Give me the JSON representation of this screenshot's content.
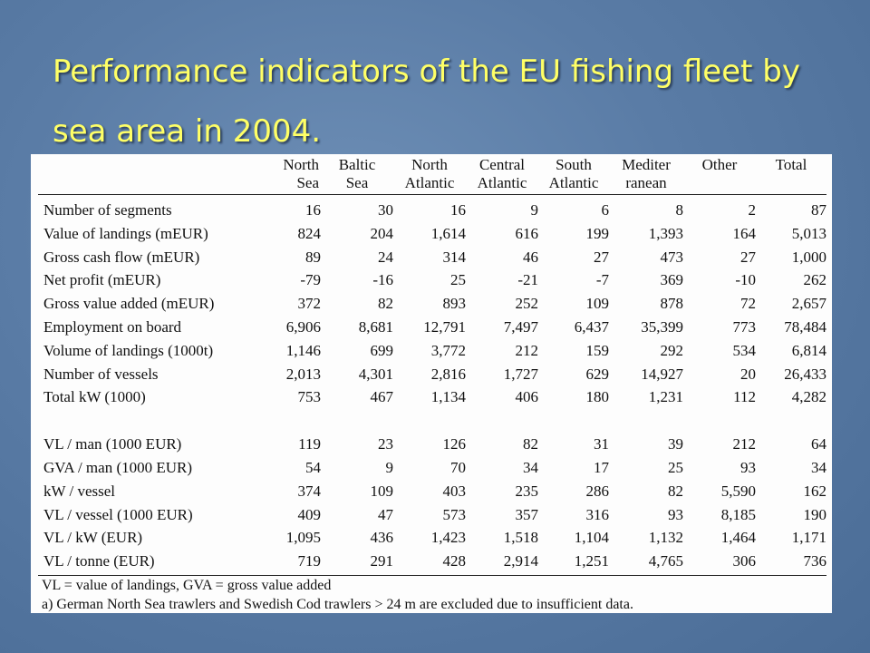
{
  "slide": {
    "title_line1": "Performance indicators of the EU fishing fleet by",
    "title_line2": "sea area in  2004."
  },
  "table": {
    "columns": [
      [
        "North",
        "Sea"
      ],
      [
        "Baltic",
        "Sea"
      ],
      [
        "North",
        "Atlantic"
      ],
      [
        "Central",
        "Atlantic"
      ],
      [
        "South",
        "Atlantic"
      ],
      [
        "Mediter",
        "ranean"
      ],
      [
        "Other",
        ""
      ],
      [
        "Total",
        ""
      ]
    ],
    "rows_group1": [
      {
        "label": "Number of segments",
        "values": [
          "16",
          "30",
          "16",
          "9",
          "6",
          "8",
          "2",
          "87"
        ]
      },
      {
        "label": "Value of landings (mEUR)",
        "values": [
          "824",
          "204",
          "1,614",
          "616",
          "199",
          "1,393",
          "164",
          "5,013"
        ]
      },
      {
        "label": "Gross cash flow (mEUR)",
        "values": [
          "89",
          "24",
          "314",
          "46",
          "27",
          "473",
          "27",
          "1,000"
        ]
      },
      {
        "label": "Net profit (mEUR)",
        "values": [
          "-79",
          "-16",
          "25",
          "-21",
          "-7",
          "369",
          "-10",
          "262"
        ]
      },
      {
        "label": "Gross value added (mEUR)",
        "values": [
          "372",
          "82",
          "893",
          "252",
          "109",
          "878",
          "72",
          "2,657"
        ]
      },
      {
        "label": "Employment on board",
        "values": [
          "6,906",
          "8,681",
          "12,791",
          "7,497",
          "6,437",
          "35,399",
          "773",
          "78,484"
        ]
      },
      {
        "label": "Volume of landings (1000t)",
        "values": [
          "1,146",
          "699",
          "3,772",
          "212",
          "159",
          "292",
          "534",
          "6,814"
        ]
      },
      {
        "label": "Number of vessels",
        "values": [
          "2,013",
          "4,301",
          "2,816",
          "1,727",
          "629",
          "14,927",
          "20",
          "26,433"
        ]
      },
      {
        "label": "Total kW (1000)",
        "values": [
          "753",
          "467",
          "1,134",
          "406",
          "180",
          "1,231",
          "112",
          "4,282"
        ]
      }
    ],
    "rows_group2": [
      {
        "label": "VL / man (1000 EUR)",
        "values": [
          "119",
          "23",
          "126",
          "82",
          "31",
          "39",
          "212",
          "64"
        ]
      },
      {
        "label": "GVA / man (1000 EUR)",
        "values": [
          "54",
          "9",
          "70",
          "34",
          "17",
          "25",
          "93",
          "34"
        ]
      },
      {
        "label": "kW / vessel",
        "values": [
          "374",
          "109",
          "403",
          "235",
          "286",
          "82",
          "5,590",
          "162"
        ]
      },
      {
        "label": "VL / vessel (1000 EUR)",
        "values": [
          "409",
          "47",
          "573",
          "357",
          "316",
          "93",
          "8,185",
          "190"
        ]
      },
      {
        "label": "VL / kW (EUR)",
        "values": [
          "1,095",
          "436",
          "1,423",
          "1,518",
          "1,104",
          "1,132",
          "1,464",
          "1,171"
        ]
      },
      {
        "label": "VL / tonne (EUR)",
        "values": [
          "719",
          "291",
          "428",
          "2,914",
          "1,251",
          "4,765",
          "306",
          "736"
        ]
      }
    ],
    "notes": [
      "VL = value of landings, GVA = gross value added",
      "a) German North Sea trawlers and Swedish Cod trawlers > 24 m are excluded due to insufficient data."
    ]
  }
}
